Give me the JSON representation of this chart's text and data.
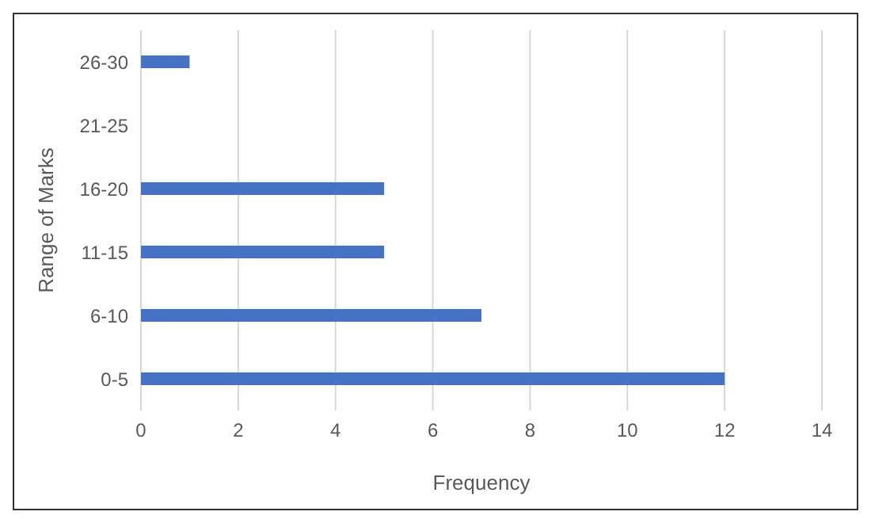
{
  "chart_data": {
    "type": "bar",
    "orientation": "horizontal",
    "xlabel": "Frequency",
    "ylabel": "Range of Marks",
    "categories": [
      "26-30",
      "21-25",
      "16-20",
      "11-15",
      "6-10",
      "0-5"
    ],
    "values": [
      1,
      0,
      5,
      5,
      7,
      12
    ],
    "color": "#4472c4",
    "xlim": [
      0,
      14
    ],
    "xticks": [
      0,
      2,
      4,
      6,
      8,
      10,
      12,
      14
    ],
    "grid": "x"
  }
}
